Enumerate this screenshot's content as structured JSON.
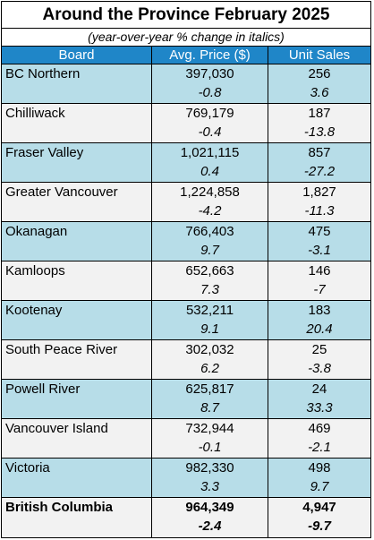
{
  "title": "Around the Province February 2025",
  "subtitle": "(year-over-year % change in italics)",
  "headers": {
    "board": "Board",
    "price": "Avg. Price ($)",
    "sales": "Unit Sales"
  },
  "colors": {
    "header_bg": "#1f86c8",
    "row_blue": "#b7dde8",
    "row_grey": "#f2f2f2"
  },
  "rows": [
    {
      "board": "BC Northern",
      "price": "397,030",
      "price_chg": "-0.8",
      "sales": "256",
      "sales_chg": "3.6"
    },
    {
      "board": "Chilliwack",
      "price": "769,179",
      "price_chg": "-0.4",
      "sales": "187",
      "sales_chg": "-13.8"
    },
    {
      "board": "Fraser Valley",
      "price": "1,021,115",
      "price_chg": "0.4",
      "sales": "857",
      "sales_chg": "-27.2"
    },
    {
      "board": "Greater Vancouver",
      "price": "1,224,858",
      "price_chg": "-4.2",
      "sales": "1,827",
      "sales_chg": "-11.3"
    },
    {
      "board": "Okanagan",
      "price": "766,403",
      "price_chg": "9.7",
      "sales": "475",
      "sales_chg": "-3.1"
    },
    {
      "board": "Kamloops",
      "price": "652,663",
      "price_chg": "7.3",
      "sales": "146",
      "sales_chg": "-7"
    },
    {
      "board": "Kootenay",
      "price": "532,211",
      "price_chg": "9.1",
      "sales": "183",
      "sales_chg": "20.4"
    },
    {
      "board": "South Peace River",
      "price": "302,032",
      "price_chg": "6.2",
      "sales": "25",
      "sales_chg": "-3.8"
    },
    {
      "board": "Powell River",
      "price": "625,817",
      "price_chg": "8.7",
      "sales": "24",
      "sales_chg": "33.3"
    },
    {
      "board": "Vancouver Island",
      "price": "732,944",
      "price_chg": "-0.1",
      "sales": "469",
      "sales_chg": "-2.1"
    },
    {
      "board": "Victoria",
      "price": "982,330",
      "price_chg": "3.3",
      "sales": "498",
      "sales_chg": "9.7"
    }
  ],
  "total": {
    "board": "British Columbia",
    "price": "964,349",
    "price_chg": "-2.4",
    "sales": "4,947",
    "sales_chg": "-9.7"
  }
}
